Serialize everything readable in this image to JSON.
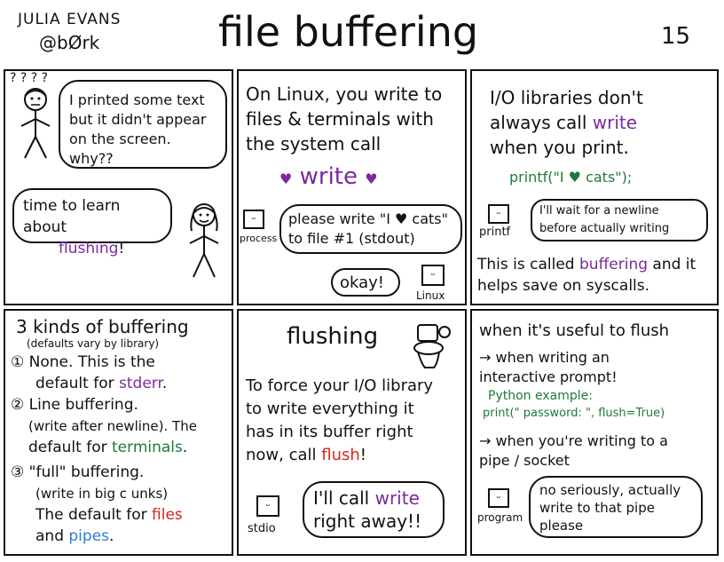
{
  "header": {
    "author_name": "JULIA EVANS",
    "author_handle": "@bØrk",
    "title": "file buffering",
    "page_number": "15"
  },
  "panel1": {
    "question_marks": "? ? ? ?",
    "bubble_text": "I printed some text but it didn't appear on the screen. why??",
    "answer_prefix": "time to learn about",
    "answer_highlight": "flushing",
    "answer_suffix": "!"
  },
  "panel2": {
    "intro": "On Linux, you write to files & terminals with the system call",
    "syscall": "write",
    "heart_icon": "heart-icon",
    "process_label": "process",
    "process_request": "please write \"I ♥ cats\" to file #1 (stdout)",
    "okay_text": "okay!",
    "linux_label": "Linux"
  },
  "panel3": {
    "line1": "I/O libraries don't",
    "line2_prefix": "always call",
    "line2_highlight": "write",
    "line3": "when you print.",
    "code": "printf(\"I ♥ cats\");",
    "printf_label": "printf",
    "printf_thought": "I'll wait for a newline before actually writing",
    "summary_prefix": "This is called",
    "summary_highlight": "buffering",
    "summary_suffix": "and it helps save on syscalls."
  },
  "panel4": {
    "heading": "3 kinds of buffering",
    "subheading": "(defaults vary by library)",
    "item1_num": "①",
    "item1_text": "None. This is the",
    "item1_default_prefix": "default for",
    "item1_default_highlight": "stderr",
    "item1_suffix": ".",
    "item2_num": "②",
    "item2_text": "Line buffering.",
    "item2_detail": "(write after newline). The",
    "item2_default_prefix": "default for",
    "item2_default_highlight": "terminals",
    "item2_suffix": ".",
    "item3_num": "③",
    "item3_text": "\"full\" buffering.",
    "item3_detail": "(write in big c unks)",
    "item3_default_prefix": "The default for",
    "item3_highlight_a": "files",
    "item3_and": "and",
    "item3_highlight_b": "pipes",
    "item3_suffix": "."
  },
  "panel5": {
    "heading": "flushing",
    "toilet_icon": "toilet-icon",
    "body_line1": "To force your I/O library",
    "body_line2": "to write everything it",
    "body_line3": "has in its buffer right",
    "body_line4_prefix": "now, call",
    "body_line4_highlight": "flush",
    "body_line4_suffix": "!",
    "stdio_label": "stdio",
    "bubble_prefix": "I'll call",
    "bubble_highlight": "write",
    "bubble_suffix": "right away!!"
  },
  "panel6": {
    "heading": "when it's useful to flush",
    "bullet1": "→ when writing an interactive prompt!",
    "python_label": "Python example:",
    "python_code": "print(\" password: \", flush=True)",
    "bullet2": "→ when you're writing to a pipe / socket",
    "program_label": "program",
    "bubble_text": "no seriously, actually write to that pipe please"
  }
}
